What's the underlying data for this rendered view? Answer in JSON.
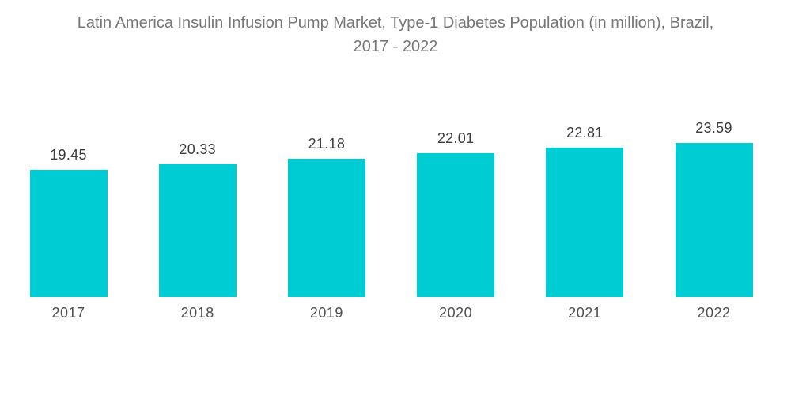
{
  "title_lines": [
    "Latin America Insulin Infusion Pump Market, Type-1 Diabetes Population (in million), Brazil,",
    "2017 - 2022"
  ],
  "chart_data": {
    "type": "bar",
    "title": "Latin America Insulin Infusion Pump Market, Type-1 Diabetes Population (in million), Brazil, 2017 - 2022",
    "categories": [
      "2017",
      "2018",
      "2019",
      "2020",
      "2021",
      "2022"
    ],
    "values": [
      19.45,
      20.33,
      21.18,
      22.01,
      22.81,
      23.59
    ],
    "value_labels": [
      "19.45",
      "20.33",
      "21.18",
      "22.01",
      "22.81",
      "23.59"
    ],
    "xlabel": "",
    "ylabel": "",
    "ylim": [
      0,
      24
    ],
    "grid": false,
    "legend": "none",
    "bar_color": "#00ccd3"
  },
  "colors": {
    "background": "#ffffff",
    "bar": "#00ccd3",
    "title_text": "#777777",
    "value_text": "#3d3d3d",
    "category_text": "#4f4f4f"
  }
}
